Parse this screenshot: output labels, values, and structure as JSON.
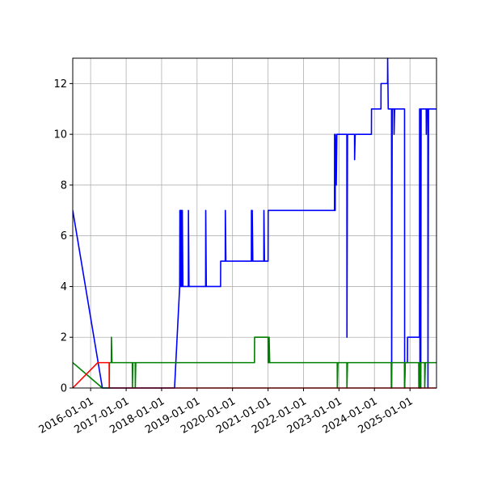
{
  "chart_data": {
    "type": "line",
    "title": "",
    "xlabel": "",
    "ylabel": "",
    "grid": true,
    "legend": "none",
    "xlim": [
      "2015-07-01",
      "2025-10-01"
    ],
    "ylim": [
      0,
      13
    ],
    "x_ticks": [
      "2016-01-01",
      "2017-01-01",
      "2018-01-01",
      "2019-01-01",
      "2020-01-01",
      "2021-01-01",
      "2022-01-01",
      "2023-01-01",
      "2024-01-01",
      "2025-01-01"
    ],
    "y_ticks": [
      0,
      2,
      4,
      6,
      8,
      10,
      12
    ],
    "series": [
      {
        "color": "#0000ff",
        "points": [
          [
            "2015-07-01",
            7
          ],
          [
            "2016-05-01",
            0
          ],
          [
            "2018-05-14",
            0
          ],
          [
            "2018-07-06",
            4
          ],
          [
            "2018-07-08",
            7
          ],
          [
            "2018-07-13",
            4
          ],
          [
            "2018-07-16",
            7
          ],
          [
            "2018-07-20",
            4
          ],
          [
            "2018-07-23",
            7
          ],
          [
            "2018-07-28",
            4
          ],
          [
            "2018-08-02",
            7
          ],
          [
            "2018-08-08",
            4
          ],
          [
            "2018-10-03",
            4
          ],
          [
            "2018-10-04",
            7
          ],
          [
            "2018-10-10",
            4
          ],
          [
            "2019-03-30",
            4
          ],
          [
            "2019-03-31",
            7
          ],
          [
            "2019-04-06",
            4
          ],
          [
            "2019-08-31",
            4
          ],
          [
            "2019-09-01",
            5
          ],
          [
            "2019-10-18",
            5
          ],
          [
            "2019-10-19",
            7
          ],
          [
            "2019-10-25",
            5
          ],
          [
            "2020-07-13",
            5
          ],
          [
            "2020-07-14",
            7
          ],
          [
            "2020-07-19",
            5
          ],
          [
            "2020-07-22",
            7
          ],
          [
            "2020-07-28",
            5
          ],
          [
            "2020-11-18",
            5
          ],
          [
            "2020-11-19",
            7
          ],
          [
            "2020-11-25",
            5
          ],
          [
            "2021-01-01",
            5
          ],
          [
            "2021-01-02",
            7
          ],
          [
            "2022-11-16",
            7
          ],
          [
            "2022-11-17",
            10
          ],
          [
            "2022-11-23",
            7
          ],
          [
            "2022-11-25",
            10
          ],
          [
            "2022-12-04",
            8
          ],
          [
            "2022-12-10",
            10
          ],
          [
            "2023-03-23",
            10
          ],
          [
            "2023-03-24",
            2
          ],
          [
            "2023-03-30",
            10
          ],
          [
            "2023-06-10",
            10
          ],
          [
            "2023-06-11",
            9
          ],
          [
            "2023-06-17",
            10
          ],
          [
            "2023-12-01",
            10
          ],
          [
            "2023-12-02",
            11
          ],
          [
            "2024-03-08",
            11
          ],
          [
            "2024-03-09",
            12
          ],
          [
            "2024-05-15",
            12
          ],
          [
            "2024-05-16",
            13
          ],
          [
            "2024-05-22",
            11
          ],
          [
            "2024-06-25",
            11
          ],
          [
            "2024-06-26",
            0
          ],
          [
            "2024-07-02",
            11
          ],
          [
            "2024-07-20",
            11
          ],
          [
            "2024-07-21",
            10
          ],
          [
            "2024-07-27",
            11
          ],
          [
            "2024-11-06",
            11
          ],
          [
            "2024-11-07",
            0
          ],
          [
            "2024-11-13",
            1
          ],
          [
            "2024-12-06",
            1
          ],
          [
            "2024-12-07",
            2
          ],
          [
            "2025-04-09",
            2
          ],
          [
            "2025-04-10",
            11
          ],
          [
            "2025-04-14",
            0
          ],
          [
            "2025-04-18",
            11
          ],
          [
            "2025-04-22",
            0
          ],
          [
            "2025-04-26",
            11
          ],
          [
            "2025-06-17",
            11
          ],
          [
            "2025-06-18",
            10
          ],
          [
            "2025-06-22",
            11
          ],
          [
            "2025-07-04",
            11
          ],
          [
            "2025-07-05",
            0
          ],
          [
            "2025-07-11",
            11
          ],
          [
            "2025-10-01",
            11
          ]
        ]
      },
      {
        "color": "#008000",
        "points": [
          [
            "2015-07-01",
            1
          ],
          [
            "2016-05-01",
            0
          ],
          [
            "2016-07-12",
            0
          ],
          [
            "2016-07-13",
            1
          ],
          [
            "2016-08-01",
            1
          ],
          [
            "2016-08-02",
            2
          ],
          [
            "2016-08-08",
            1
          ],
          [
            "2017-03-05",
            1
          ],
          [
            "2017-03-06",
            0
          ],
          [
            "2017-03-11",
            1
          ],
          [
            "2017-04-04",
            1
          ],
          [
            "2017-04-05",
            0
          ],
          [
            "2017-04-10",
            1
          ],
          [
            "2020-08-14",
            1
          ],
          [
            "2020-08-15",
            2
          ],
          [
            "2021-01-01",
            2
          ],
          [
            "2021-01-02",
            1
          ],
          [
            "2021-01-11",
            1
          ],
          [
            "2021-01-12",
            2
          ],
          [
            "2021-01-18",
            1
          ],
          [
            "2022-12-14",
            1
          ],
          [
            "2022-12-15",
            0
          ],
          [
            "2022-12-21",
            1
          ],
          [
            "2023-03-23",
            1
          ],
          [
            "2023-03-24",
            0
          ],
          [
            "2023-03-30",
            1
          ],
          [
            "2024-06-22",
            1
          ],
          [
            "2024-06-23",
            0
          ],
          [
            "2024-06-29",
            1
          ],
          [
            "2024-11-05",
            1
          ],
          [
            "2024-11-06",
            0
          ],
          [
            "2024-11-12",
            1
          ],
          [
            "2025-04-01",
            1
          ],
          [
            "2025-04-02",
            0
          ],
          [
            "2025-04-06",
            1
          ],
          [
            "2025-04-10",
            0
          ],
          [
            "2025-04-14",
            1
          ],
          [
            "2025-04-18",
            0
          ],
          [
            "2025-04-22",
            1
          ],
          [
            "2025-06-01",
            1
          ],
          [
            "2025-06-02",
            0
          ],
          [
            "2025-06-08",
            1
          ],
          [
            "2025-10-01",
            1
          ]
        ]
      },
      {
        "color": "#ff0000",
        "points": [
          [
            "2015-07-01",
            0
          ],
          [
            "2016-03-15",
            1
          ],
          [
            "2016-07-10",
            1
          ],
          [
            "2016-07-11",
            0
          ],
          [
            "2025-10-01",
            0
          ]
        ]
      }
    ]
  }
}
